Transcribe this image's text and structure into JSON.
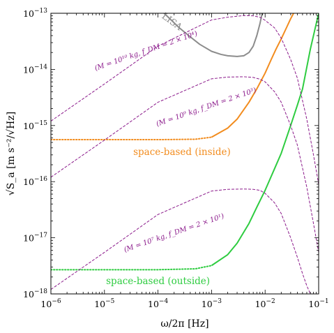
{
  "chart_data": {
    "type": "line",
    "xscale": "log",
    "yscale": "log",
    "xlim": [
      1e-06,
      0.1
    ],
    "ylim": [
      1e-18,
      1e-13
    ],
    "xlabel": "ω/2π [Hz]",
    "ylabel": "√S_a [m s⁻²/√Hz]",
    "grid": false,
    "x_ticks": [
      {
        "value": 1e-06,
        "base": "10",
        "exp": "−6"
      },
      {
        "value": 1e-05,
        "base": "10",
        "exp": "−5"
      },
      {
        "value": 0.0001,
        "base": "10",
        "exp": "−4"
      },
      {
        "value": 0.001,
        "base": "10",
        "exp": "−3"
      },
      {
        "value": 0.01,
        "base": "10",
        "exp": "−2"
      },
      {
        "value": 0.1,
        "base": "10",
        "exp": "−1"
      }
    ],
    "y_ticks": [
      {
        "value": 1e-18,
        "base": "10",
        "exp": "−18"
      },
      {
        "value": 1e-17,
        "base": "10",
        "exp": "−17"
      },
      {
        "value": 1e-16,
        "base": "10",
        "exp": "−16"
      },
      {
        "value": 1e-15,
        "base": "10",
        "exp": "−15"
      },
      {
        "value": 1e-14,
        "base": "10",
        "exp": "−14"
      },
      {
        "value": 1e-13,
        "base": "10",
        "exp": "−13"
      }
    ],
    "series": [
      {
        "name": "LISA",
        "color": "#8c8c8c",
        "style": "solid",
        "points": [
          [
            0.00013,
            1e-13
          ],
          [
            0.00025,
            5.5e-14
          ],
          [
            0.0004,
            3.8e-14
          ],
          [
            0.0006,
            2.8e-14
          ],
          [
            0.001,
            2.1e-14
          ],
          [
            0.0015,
            1.85e-14
          ],
          [
            0.002,
            1.75e-14
          ],
          [
            0.003,
            1.7e-14
          ],
          [
            0.004,
            1.75e-14
          ],
          [
            0.005,
            2e-14
          ],
          [
            0.006,
            2.6e-14
          ],
          [
            0.007,
            4e-14
          ],
          [
            0.008,
            6.5e-14
          ],
          [
            0.0088,
            1e-13
          ]
        ]
      },
      {
        "name": "space-based (inside)",
        "color": "#f28c1e",
        "segments": [
          {
            "style": "dotted",
            "points": [
              [
                1e-06,
                5.6e-16
              ],
              [
                0.0001,
                5.6e-16
              ],
              [
                0.0005,
                5.7e-16
              ],
              [
                0.001,
                6.2e-16
              ]
            ]
          },
          {
            "style": "solid",
            "points": [
              [
                0.001,
                6.2e-16
              ],
              [
                0.002,
                9e-16
              ],
              [
                0.003,
                1.3e-15
              ],
              [
                0.005,
                2.6e-15
              ],
              [
                0.007,
                4.5e-15
              ],
              [
                0.01,
                8.6e-15
              ],
              [
                0.013,
                1.5e-14
              ],
              [
                0.016,
                2.3e-14
              ],
              [
                0.02,
                3.5e-14
              ],
              [
                0.025,
                5.5e-14
              ],
              [
                0.03,
                8e-14
              ],
              [
                0.034,
                1e-13
              ]
            ]
          }
        ]
      },
      {
        "name": "space-based (outside)",
        "color": "#2ecc40",
        "segments": [
          {
            "style": "dotted",
            "points": [
              [
                1e-06,
                2.7e-18
              ],
              [
                0.0001,
                2.7e-18
              ],
              [
                0.0005,
                2.8e-18
              ],
              [
                0.001,
                3.2e-18
              ]
            ]
          },
          {
            "style": "solid",
            "points": [
              [
                0.001,
                3.2e-18
              ],
              [
                0.002,
                5e-18
              ],
              [
                0.003,
                8e-18
              ],
              [
                0.005,
                1.8e-17
              ],
              [
                0.007,
                3.5e-17
              ],
              [
                0.01,
                7e-17
              ],
              [
                0.015,
                1.7e-16
              ],
              [
                0.02,
                3.2e-16
              ],
              [
                0.03,
                1e-15
              ],
              [
                0.04,
                2.3e-15
              ],
              [
                0.05,
                4.5e-15
              ],
              [
                0.07,
                2.3e-14
              ],
              [
                0.09,
                6.5e-14
              ],
              [
                0.1,
                1e-13
              ]
            ]
          }
        ]
      },
      {
        "name": "M = 10^10 kg, f_DM = 2×10^4",
        "color": "#8b1a8b",
        "style": "dashed",
        "points": [
          [
            1e-06,
            1.2e-15
          ],
          [
            1e-05,
            5.5e-15
          ],
          [
            0.0001,
            2.6e-14
          ],
          [
            0.001,
            7.6e-14
          ],
          [
            0.002,
            8.5e-14
          ],
          [
            0.004,
            9.1e-14
          ],
          [
            0.006,
            9e-14
          ],
          [
            0.008,
            8.5e-14
          ],
          [
            0.01,
            7.5e-14
          ],
          [
            0.015,
            5.5e-14
          ],
          [
            0.02,
            3.6e-14
          ],
          [
            0.03,
            1.5e-14
          ],
          [
            0.04,
            7e-15
          ],
          [
            0.06,
            1.3e-15
          ],
          [
            0.08,
            3e-16
          ],
          [
            0.1,
            9e-17
          ]
        ]
      },
      {
        "name": "M = 10^9 kg, f_DM = 2×10^3",
        "color": "#8b1a8b",
        "style": "dashed",
        "points": [
          [
            1e-06,
            1.2e-16
          ],
          [
            1e-05,
            5.5e-16
          ],
          [
            0.0001,
            2.6e-15
          ],
          [
            0.001,
            6.8e-15
          ],
          [
            0.002,
            7.3e-15
          ],
          [
            0.004,
            7.4e-15
          ],
          [
            0.006,
            7.2e-15
          ],
          [
            0.008,
            6.7e-15
          ],
          [
            0.01,
            6e-15
          ],
          [
            0.015,
            4e-15
          ],
          [
            0.02,
            2.6e-15
          ],
          [
            0.03,
            1e-15
          ],
          [
            0.04,
            4.5e-16
          ],
          [
            0.06,
            8e-17
          ],
          [
            0.08,
            1.8e-17
          ],
          [
            0.1,
            5.5e-18
          ]
        ]
      },
      {
        "name": "M = 10^7 kg, f_DM = 2×10^1",
        "color": "#8b1a8b",
        "style": "dashed",
        "points": [
          [
            1e-06,
            1.2e-18
          ],
          [
            1e-05,
            5.5e-18
          ],
          [
            0.0001,
            2.6e-17
          ],
          [
            0.001,
            6.8e-17
          ],
          [
            0.002,
            7.3e-17
          ],
          [
            0.004,
            7.4e-17
          ],
          [
            0.006,
            7.3e-17
          ],
          [
            0.008,
            7e-17
          ],
          [
            0.01,
            6.2e-17
          ],
          [
            0.015,
            4.2e-17
          ],
          [
            0.02,
            2.7e-17
          ],
          [
            0.03,
            1e-17
          ],
          [
            0.04,
            4.5e-18
          ],
          [
            0.05,
            2.3e-18
          ],
          [
            0.06,
            1.4e-18
          ],
          [
            0.07,
            1e-18
          ]
        ]
      }
    ],
    "annotations": [
      {
        "key": "lisa",
        "text": "LISA",
        "x": 0.00018,
        "y": 7e-14,
        "color": "#8c8c8c",
        "angle": 36,
        "size": 13,
        "italic": false
      },
      {
        "key": "m10",
        "text": "(M = 10¹⁰ kg, f_DM = 2 × 10⁴)",
        "x": 6e-05,
        "y": 2.1e-14,
        "color": "#8b1a8b",
        "angle": -19,
        "size": 10,
        "italic": true
      },
      {
        "key": "m9",
        "text": "(M = 10⁹ kg, f_DM = 2 × 10³)",
        "x": 0.0008,
        "y": 2.1e-15,
        "color": "#8b1a8b",
        "angle": -19,
        "size": 10,
        "italic": true
      },
      {
        "key": "m7",
        "text": "(M = 10⁷ kg, f_DM = 2 × 10¹)",
        "x": 0.0002,
        "y": 1.2e-17,
        "color": "#8b1a8b",
        "angle": -19,
        "size": 10,
        "italic": true
      },
      {
        "key": "inside",
        "text": "space-based (inside)",
        "x": 0.00028,
        "y": 3.3e-16,
        "color": "#f28c1e",
        "angle": 0,
        "size": 13.5,
        "italic": false
      },
      {
        "key": "outside",
        "text": "space-based (outside)",
        "x": 0.0001,
        "y": 1.65e-18,
        "color": "#2ecc40",
        "angle": 0,
        "size": 13.5,
        "italic": false
      }
    ]
  }
}
